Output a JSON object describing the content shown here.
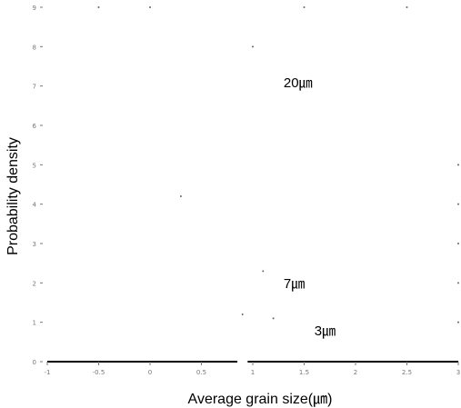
{
  "chart_data": {
    "type": "scatter",
    "xlabel": "Average grain size(㎛)",
    "ylabel": "Probability density",
    "xlim": [
      -1,
      3
    ],
    "ylim": [
      0,
      9
    ],
    "grid": false,
    "legend": "none",
    "x_tick_labels": [
      "-1",
      "-0.5",
      "0",
      "0.5",
      "1",
      "1.5",
      "2",
      "2.5",
      "3"
    ],
    "y_tick_labels": [
      "0",
      "1",
      "2",
      "3",
      "4",
      "5",
      "6",
      "7",
      "8",
      "9"
    ],
    "annotations": [
      {
        "text": "20㎛",
        "x": 1.3,
        "y": 7.1
      },
      {
        "text": "7㎛",
        "x": 1.3,
        "y": 2.0
      },
      {
        "text": "3㎛",
        "x": 1.6,
        "y": 0.8
      }
    ],
    "series": [
      {
        "points": [
          {
            "x": -0.5,
            "y": 9.0
          },
          {
            "x": 0.0,
            "y": 9.0
          },
          {
            "x": 1.0,
            "y": 8.0
          },
          {
            "x": 0.3,
            "y": 4.2
          },
          {
            "x": 1.1,
            "y": 2.3
          },
          {
            "x": 0.9,
            "y": 1.2
          },
          {
            "x": 1.2,
            "y": 1.1
          },
          {
            "x": 3.0,
            "y": 5.0
          },
          {
            "x": 3.0,
            "y": 4.0
          },
          {
            "x": 3.0,
            "y": 3.0
          },
          {
            "x": 3.0,
            "y": 2.0
          },
          {
            "x": 3.0,
            "y": 1.0
          },
          {
            "x": 1.5,
            "y": 9.0
          },
          {
            "x": 2.5,
            "y": 9.0
          }
        ]
      }
    ],
    "colors": {
      "axis": "#000000",
      "text": "#000000",
      "ticks": "#777777",
      "points": "#666666"
    }
  }
}
